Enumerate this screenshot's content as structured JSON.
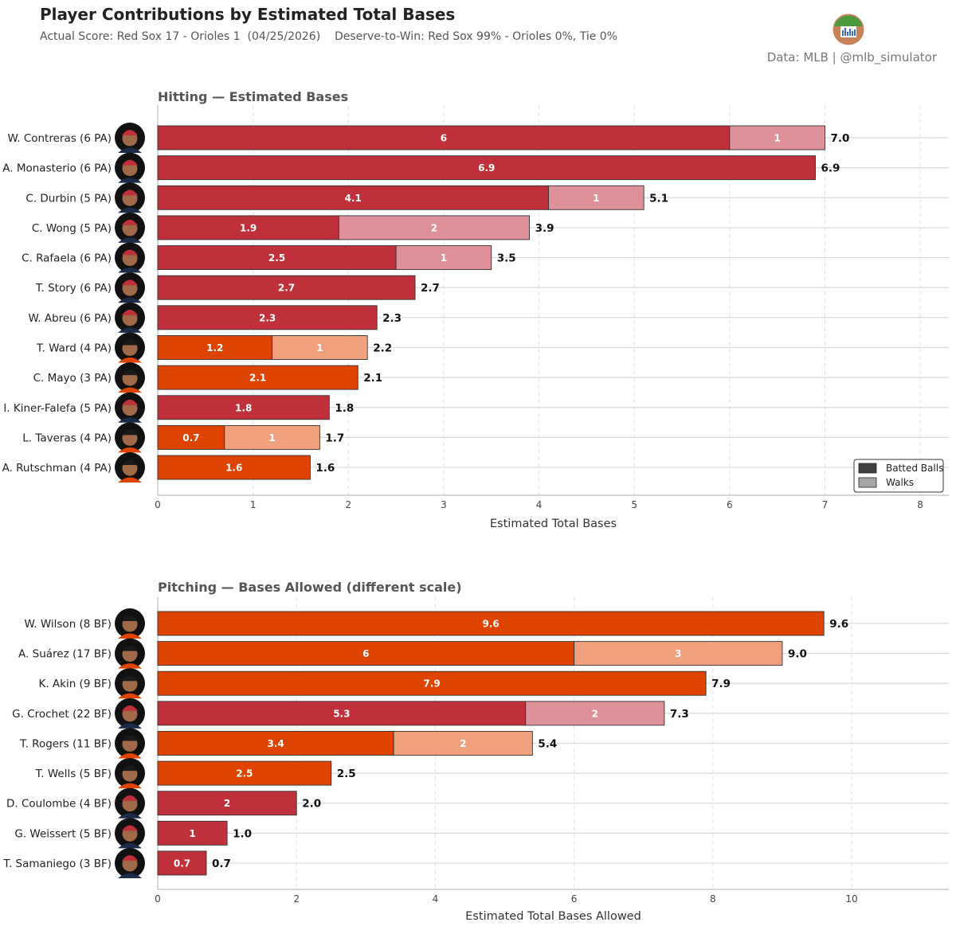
{
  "header": {
    "title": "Player Contributions by Estimated Total Bases",
    "subtitle": "Actual Score: Red Sox 17 - Orioles 1  (04/25/2026)    Deserve-to-Win: Red Sox 99% - Orioles 0%, Tie 0%",
    "source": "Data: MLB  |  @mlb_simulator"
  },
  "colors": {
    "red_sox": "#c0303a",
    "red_sox_light": "#de9198",
    "orioles": "#df4300",
    "orioles_light": "#f0a07d",
    "legend_batted": "#404040",
    "legend_walks": "#a6a6a6"
  },
  "legend": {
    "placement": "bottom-right",
    "items": [
      "Batted Balls",
      "Walks"
    ]
  },
  "chart_data": [
    {
      "type": "bar",
      "orientation": "horizontal",
      "stacked": true,
      "title": "Hitting — Estimated Bases",
      "xlabel": "Estimated Total Bases",
      "xlim": [
        0,
        8.3
      ],
      "xticks": [
        0,
        1,
        2,
        3,
        4,
        5,
        6,
        7,
        8
      ],
      "grid": true,
      "categories": [
        "W. Contreras  (6 PA)",
        "A. Monasterio  (6 PA)",
        "C. Durbin  (5 PA)",
        "C. Wong  (5 PA)",
        "C. Rafaela  (6 PA)",
        "T. Story  (6 PA)",
        "W. Abreu  (6 PA)",
        "T. Ward  (4 PA)",
        "C. Mayo  (3 PA)",
        "I. Kiner-Falefa  (5 PA)",
        "L. Taveras  (4 PA)",
        "A. Rutschman  (4 PA)"
      ],
      "team": [
        "Red Sox",
        "Red Sox",
        "Red Sox",
        "Red Sox",
        "Red Sox",
        "Red Sox",
        "Red Sox",
        "Orioles",
        "Orioles",
        "Red Sox",
        "Orioles",
        "Orioles"
      ],
      "series": [
        {
          "name": "Batted Balls",
          "values": [
            6.0,
            6.9,
            4.1,
            1.9,
            2.5,
            2.7,
            2.3,
            1.2,
            2.1,
            1.8,
            0.7,
            1.6
          ]
        },
        {
          "name": "Walks",
          "values": [
            1,
            0,
            1,
            2,
            1,
            0,
            0,
            1,
            0,
            0,
            1,
            0
          ]
        }
      ],
      "total_labels": [
        "7.0",
        "6.9",
        "5.1",
        "3.9",
        "3.5",
        "2.7",
        "2.3",
        "2.2",
        "2.1",
        "1.8",
        "1.7",
        "1.6"
      ]
    },
    {
      "type": "bar",
      "orientation": "horizontal",
      "stacked": true,
      "title": "Pitching — Bases Allowed  (different scale)",
      "xlabel": "Estimated Total Bases Allowed",
      "xlim": [
        0,
        11.4
      ],
      "xticks": [
        0,
        2,
        4,
        6,
        8,
        10
      ],
      "grid": true,
      "categories": [
        "W. Wilson  (8 BF)",
        "A. Suárez  (17 BF)",
        "K. Akin  (9 BF)",
        "G. Crochet  (22 BF)",
        "T. Rogers  (11 BF)",
        "T. Wells  (5 BF)",
        "D. Coulombe  (4 BF)",
        "G. Weissert  (5 BF)",
        "T. Samaniego  (3 BF)"
      ],
      "team": [
        "Orioles",
        "Orioles",
        "Orioles",
        "Red Sox",
        "Orioles",
        "Orioles",
        "Red Sox",
        "Red Sox",
        "Red Sox"
      ],
      "series": [
        {
          "name": "Batted Balls",
          "values": [
            9.6,
            6.0,
            7.9,
            5.3,
            3.4,
            2.5,
            2.0,
            1.0,
            0.7
          ]
        },
        {
          "name": "Walks",
          "values": [
            0,
            3,
            0,
            2,
            2,
            0,
            0,
            0,
            0
          ]
        }
      ],
      "total_labels": [
        "9.6",
        "9.0",
        "7.9",
        "7.3",
        "5.4",
        "2.5",
        "2.0",
        "1.0",
        "0.7"
      ]
    }
  ]
}
